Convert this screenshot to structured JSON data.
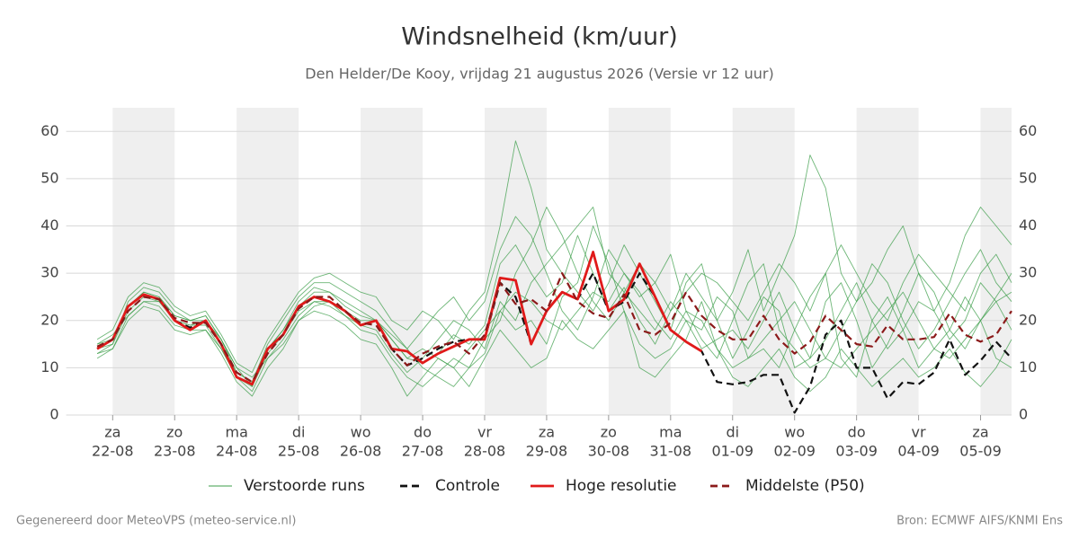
{
  "chart_data": {
    "type": "line",
    "title": "Windsnelheid (km/uur)",
    "subtitle": "Den Helder/De Kooy, vrijdag 21 augustus 2026 (Versie vr 12 uur)",
    "footer_left": "Gegenereerd door MeteoVPS (meteo-service.nl)",
    "footer_right": "Bron: ECMWF AIFS/KNMI Ens",
    "xlim": [
      0.25,
      15.5
    ],
    "xticks": [
      {
        "value": 1,
        "label": "za",
        "date": "22-08"
      },
      {
        "value": 2,
        "label": "zo",
        "date": "23-08"
      },
      {
        "value": 3,
        "label": "ma",
        "date": "24-08"
      },
      {
        "value": 4,
        "label": "di",
        "date": "25-08"
      },
      {
        "value": 5,
        "label": "wo",
        "date": "26-08"
      },
      {
        "value": 6,
        "label": "do",
        "date": "27-08"
      },
      {
        "value": 7,
        "label": "vr",
        "date": "28-08"
      },
      {
        "value": 8,
        "label": "za",
        "date": "29-08"
      },
      {
        "value": 9,
        "label": "zo",
        "date": "30-08"
      },
      {
        "value": 10,
        "label": "ma",
        "date": "31-08"
      },
      {
        "value": 11,
        "label": "di",
        "date": "01-09"
      },
      {
        "value": 12,
        "label": "wo",
        "date": "02-09"
      },
      {
        "value": 13,
        "label": "do",
        "date": "03-09"
      },
      {
        "value": 14,
        "label": "vr",
        "date": "04-09"
      },
      {
        "value": 15,
        "label": "za",
        "date": "05-09"
      }
    ],
    "ylim": [
      0,
      65
    ],
    "yticks": [
      0,
      10,
      20,
      30,
      40,
      50,
      60
    ],
    "grid": true,
    "x": [
      0.75,
      1,
      1.25,
      1.5,
      1.75,
      2,
      2.25,
      2.5,
      2.75,
      3,
      3.25,
      3.5,
      3.75,
      4,
      4.25,
      4.5,
      4.75,
      5,
      5.25,
      5.5,
      5.75,
      6,
      6.25,
      6.5,
      6.75,
      7,
      7.25,
      7.5,
      7.75,
      8,
      8.25,
      8.5,
      8.75,
      9,
      9.25,
      9.5,
      9.75,
      10,
      10.25,
      10.5,
      10.75,
      11,
      11.25,
      11.5,
      11.75,
      12,
      12.25,
      12.5,
      12.75,
      13,
      13.25,
      13.5,
      13.75,
      14,
      14.25,
      14.5,
      14.75,
      15,
      15.25,
      15.5
    ],
    "series": [
      {
        "name": "Verstoorde runs",
        "color": "#3c9e4a",
        "members": [
          [
            13,
            15,
            24,
            27,
            26,
            22,
            20,
            21,
            16,
            10,
            6,
            14,
            18,
            24,
            27,
            26,
            23,
            21,
            20,
            16,
            12,
            11,
            13,
            17,
            15,
            19,
            32,
            36,
            30,
            25,
            28,
            38,
            30,
            22,
            27,
            20,
            15,
            22,
            30,
            25,
            20,
            12,
            18,
            25,
            22,
            10,
            12,
            24,
            28,
            20,
            10,
            15,
            22,
            30,
            26,
            18,
            14,
            20,
            25,
            30
          ],
          [
            15,
            17,
            21,
            24,
            23,
            19,
            18,
            18,
            14,
            8,
            5,
            12,
            16,
            21,
            24,
            23,
            21,
            18,
            17,
            12,
            8,
            6,
            9,
            12,
            10,
            13,
            22,
            18,
            20,
            15,
            25,
            28,
            40,
            32,
            22,
            15,
            12,
            14,
            20,
            18,
            25,
            22,
            12,
            14,
            10,
            18,
            25,
            30,
            12,
            8,
            20,
            25,
            18,
            10,
            14,
            18,
            25,
            20,
            12,
            10
          ],
          [
            14,
            16,
            23,
            26,
            25,
            21,
            20,
            20,
            15,
            9,
            7,
            15,
            20,
            25,
            28,
            28,
            26,
            24,
            22,
            18,
            14,
            18,
            22,
            25,
            20,
            24,
            35,
            42,
            38,
            30,
            22,
            18,
            25,
            35,
            30,
            25,
            28,
            34,
            22,
            16,
            12,
            20,
            28,
            32,
            18,
            14,
            10,
            12,
            18,
            24,
            32,
            28,
            20,
            14,
            18,
            24,
            30,
            35,
            28,
            24
          ],
          [
            12,
            14,
            20,
            23,
            22,
            18,
            17,
            18,
            13,
            7,
            4,
            10,
            14,
            20,
            22,
            21,
            19,
            16,
            15,
            10,
            4,
            8,
            12,
            10,
            6,
            12,
            18,
            14,
            10,
            12,
            20,
            16,
            14,
            18,
            22,
            10,
            8,
            12,
            16,
            24,
            14,
            8,
            6,
            10,
            14,
            8,
            5,
            8,
            14,
            10,
            6,
            9,
            12,
            8,
            10,
            14,
            9,
            6,
            10,
            16
          ],
          [
            16,
            18,
            25,
            28,
            27,
            23,
            21,
            22,
            17,
            11,
            9,
            16,
            21,
            26,
            29,
            30,
            28,
            26,
            25,
            20,
            18,
            22,
            20,
            16,
            22,
            26,
            40,
            58,
            48,
            35,
            30,
            26,
            22,
            28,
            36,
            30,
            24,
            18,
            28,
            32,
            20,
            26,
            35,
            22,
            30,
            38,
            55,
            48,
            30,
            24,
            28,
            35,
            40,
            30,
            22,
            28,
            38,
            44,
            40,
            36
          ],
          [
            14,
            15,
            22,
            25,
            24,
            20,
            19,
            19,
            14,
            8,
            6,
            13,
            17,
            22,
            24,
            24,
            21,
            19,
            18,
            13,
            9,
            12,
            16,
            20,
            18,
            14,
            24,
            20,
            28,
            32,
            36,
            40,
            44,
            30,
            26,
            22,
            18,
            24,
            20,
            14,
            16,
            18,
            14,
            20,
            26,
            18,
            12,
            16,
            22,
            28,
            20,
            14,
            18,
            24,
            22,
            16,
            20,
            28,
            24,
            18
          ],
          [
            13,
            14,
            21,
            24,
            24,
            20,
            19,
            20,
            16,
            10,
            8,
            12,
            15,
            20,
            23,
            24,
            22,
            20,
            20,
            16,
            12,
            14,
            12,
            10,
            14,
            18,
            22,
            26,
            24,
            20,
            18,
            22,
            26,
            24,
            30,
            26,
            20,
            16,
            22,
            20,
            14,
            10,
            12,
            16,
            20,
            24,
            18,
            12,
            10,
            14,
            18,
            22,
            26,
            20,
            14,
            12,
            16,
            20,
            24,
            26
          ],
          [
            15,
            16,
            23,
            26,
            25,
            21,
            20,
            21,
            16,
            9,
            7,
            14,
            18,
            23,
            26,
            26,
            24,
            22,
            20,
            17,
            14,
            10,
            8,
            6,
            10,
            16,
            20,
            30,
            36,
            44,
            38,
            30,
            24,
            20,
            26,
            32,
            28,
            22,
            26,
            30,
            28,
            24,
            20,
            26,
            32,
            28,
            22,
            30,
            36,
            30,
            24,
            20,
            28,
            34,
            30,
            26,
            22,
            30,
            34,
            28
          ]
        ]
      },
      {
        "name": "Controle",
        "color": "#111111",
        "dashed": true,
        "values": [
          14,
          16,
          23,
          25.5,
          24.5,
          20,
          18.5,
          20,
          15,
          8,
          6.5,
          14,
          17,
          23,
          25,
          24,
          22,
          19,
          20,
          14,
          10.5,
          12,
          14,
          15.5,
          16,
          16,
          28,
          25,
          15,
          22,
          26,
          24.5,
          30,
          22,
          24,
          30,
          25,
          18,
          15.5,
          13.5,
          7,
          6.5,
          7,
          8.5,
          8.5,
          0.5,
          6,
          17,
          20,
          10,
          10,
          3.5,
          7,
          6.5,
          9,
          16,
          8.5,
          11.5,
          15.5,
          12
        ]
      },
      {
        "name": "Hoge resolutie",
        "color": "#e01a1a",
        "values": [
          14,
          16,
          23,
          25.5,
          24.5,
          20,
          18,
          20,
          15,
          8,
          6.5,
          14,
          17,
          23,
          25,
          24,
          22,
          19,
          20,
          14,
          13.5,
          11,
          13,
          14.5,
          16,
          16,
          29,
          28.5,
          15,
          22,
          26,
          24.5,
          34.5,
          22,
          24.5,
          32,
          25,
          18,
          15.5,
          13.5,
          null,
          null,
          null,
          null,
          null,
          null,
          null,
          null,
          null,
          null,
          null,
          null,
          null,
          null,
          null,
          null,
          null,
          null,
          null,
          null
        ]
      },
      {
        "name": "Middelste (P50)",
        "color": "#8b1a1a",
        "dashed": true,
        "values": [
          14.5,
          16,
          22,
          25,
          24.5,
          20.5,
          19.5,
          19.5,
          15,
          9,
          7,
          13,
          17,
          22.5,
          25,
          25,
          22,
          19.5,
          19,
          14,
          10.5,
          13,
          14.5,
          15.5,
          13,
          17,
          28,
          23.5,
          24.5,
          22,
          30,
          24,
          21.5,
          20.5,
          25.5,
          18,
          17,
          19.5,
          26,
          21,
          18,
          16,
          16,
          21,
          16,
          13,
          15.5,
          21,
          18,
          15,
          14.5,
          19,
          16,
          16,
          16.5,
          21.5,
          17,
          15.5,
          17,
          22
        ]
      }
    ]
  }
}
